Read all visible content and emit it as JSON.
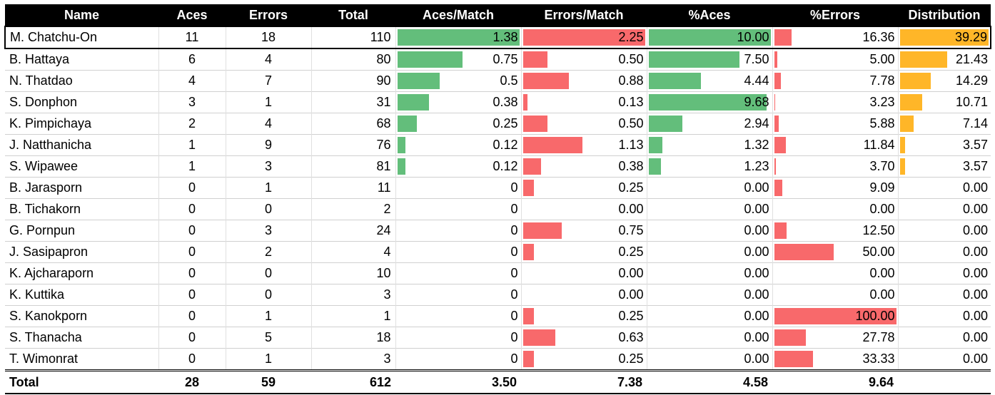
{
  "table": {
    "headers": [
      "Name",
      "Aces",
      "Errors",
      "Total",
      "Aces/Match",
      "Errors/Match",
      "%Aces",
      "%Errors",
      "Distribution"
    ],
    "colors": {
      "aces_bar": "#63be7b",
      "errors_bar": "#f8696b",
      "distribution_bar": "#ffb628",
      "header_bg": "#000000"
    },
    "rows": [
      {
        "name": "M. Chatchu-On",
        "aces": "11",
        "errors": "18",
        "total": "110",
        "aces_per_match": "1.38",
        "errors_per_match": "2.25",
        "pct_aces": "10.00",
        "pct_errors": "16.36",
        "distribution": "39.29"
      },
      {
        "name": "B. Hattaya",
        "aces": "6",
        "errors": "4",
        "total": "80",
        "aces_per_match": "0.75",
        "errors_per_match": "0.50",
        "pct_aces": "7.50",
        "pct_errors": "5.00",
        "distribution": "21.43"
      },
      {
        "name": "N. Thatdao",
        "aces": "4",
        "errors": "7",
        "total": "90",
        "aces_per_match": "0.5",
        "errors_per_match": "0.88",
        "pct_aces": "4.44",
        "pct_errors": "7.78",
        "distribution": "14.29"
      },
      {
        "name": "S. Donphon",
        "aces": "3",
        "errors": "1",
        "total": "31",
        "aces_per_match": "0.38",
        "errors_per_match": "0.13",
        "pct_aces": "9.68",
        "pct_errors": "3.23",
        "distribution": "10.71"
      },
      {
        "name": "K. Pimpichaya",
        "aces": "2",
        "errors": "4",
        "total": "68",
        "aces_per_match": "0.25",
        "errors_per_match": "0.50",
        "pct_aces": "2.94",
        "pct_errors": "5.88",
        "distribution": "7.14"
      },
      {
        "name": "J. Natthanicha",
        "aces": "1",
        "errors": "9",
        "total": "76",
        "aces_per_match": "0.12",
        "errors_per_match": "1.13",
        "pct_aces": "1.32",
        "pct_errors": "11.84",
        "distribution": "3.57"
      },
      {
        "name": "S. Wipawee",
        "aces": "1",
        "errors": "3",
        "total": "81",
        "aces_per_match": "0.12",
        "errors_per_match": "0.38",
        "pct_aces": "1.23",
        "pct_errors": "3.70",
        "distribution": "3.57"
      },
      {
        "name": "B. Jarasporn",
        "aces": "0",
        "errors": "1",
        "total": "11",
        "aces_per_match": "0",
        "errors_per_match": "0.25",
        "pct_aces": "0.00",
        "pct_errors": "9.09",
        "distribution": "0.00"
      },
      {
        "name": "B. Tichakorn",
        "aces": "0",
        "errors": "0",
        "total": "2",
        "aces_per_match": "0",
        "errors_per_match": "0.00",
        "pct_aces": "0.00",
        "pct_errors": "0.00",
        "distribution": "0.00"
      },
      {
        "name": "G. Pornpun",
        "aces": "0",
        "errors": "3",
        "total": "24",
        "aces_per_match": "0",
        "errors_per_match": "0.75",
        "pct_aces": "0.00",
        "pct_errors": "12.50",
        "distribution": "0.00"
      },
      {
        "name": "J. Sasipapron",
        "aces": "0",
        "errors": "2",
        "total": "4",
        "aces_per_match": "0",
        "errors_per_match": "0.25",
        "pct_aces": "0.00",
        "pct_errors": "50.00",
        "distribution": "0.00"
      },
      {
        "name": "K. Ajcharaporn",
        "aces": "0",
        "errors": "0",
        "total": "10",
        "aces_per_match": "0",
        "errors_per_match": "0.00",
        "pct_aces": "0.00",
        "pct_errors": "0.00",
        "distribution": "0.00"
      },
      {
        "name": "K. Kuttika",
        "aces": "0",
        "errors": "0",
        "total": "3",
        "aces_per_match": "0",
        "errors_per_match": "0.00",
        "pct_aces": "0.00",
        "pct_errors": "0.00",
        "distribution": "0.00"
      },
      {
        "name": "S. Kanokporn",
        "aces": "0",
        "errors": "1",
        "total": "1",
        "aces_per_match": "0",
        "errors_per_match": "0.25",
        "pct_aces": "0.00",
        "pct_errors": "100.00",
        "distribution": "0.00"
      },
      {
        "name": "S. Thanacha",
        "aces": "0",
        "errors": "5",
        "total": "18",
        "aces_per_match": "0",
        "errors_per_match": "0.63",
        "pct_aces": "0.00",
        "pct_errors": "27.78",
        "distribution": "0.00"
      },
      {
        "name": "T. Wimonrat",
        "aces": "0",
        "errors": "1",
        "total": "3",
        "aces_per_match": "0",
        "errors_per_match": "0.25",
        "pct_aces": "0.00",
        "pct_errors": "33.33",
        "distribution": "0.00"
      }
    ],
    "totals": {
      "name": "Total",
      "aces": "28",
      "errors": "59",
      "total": "612",
      "aces_per_match": "3.50",
      "errors_per_match": "7.38",
      "pct_aces": "4.58",
      "pct_errors": "9.64",
      "distribution": ""
    }
  }
}
